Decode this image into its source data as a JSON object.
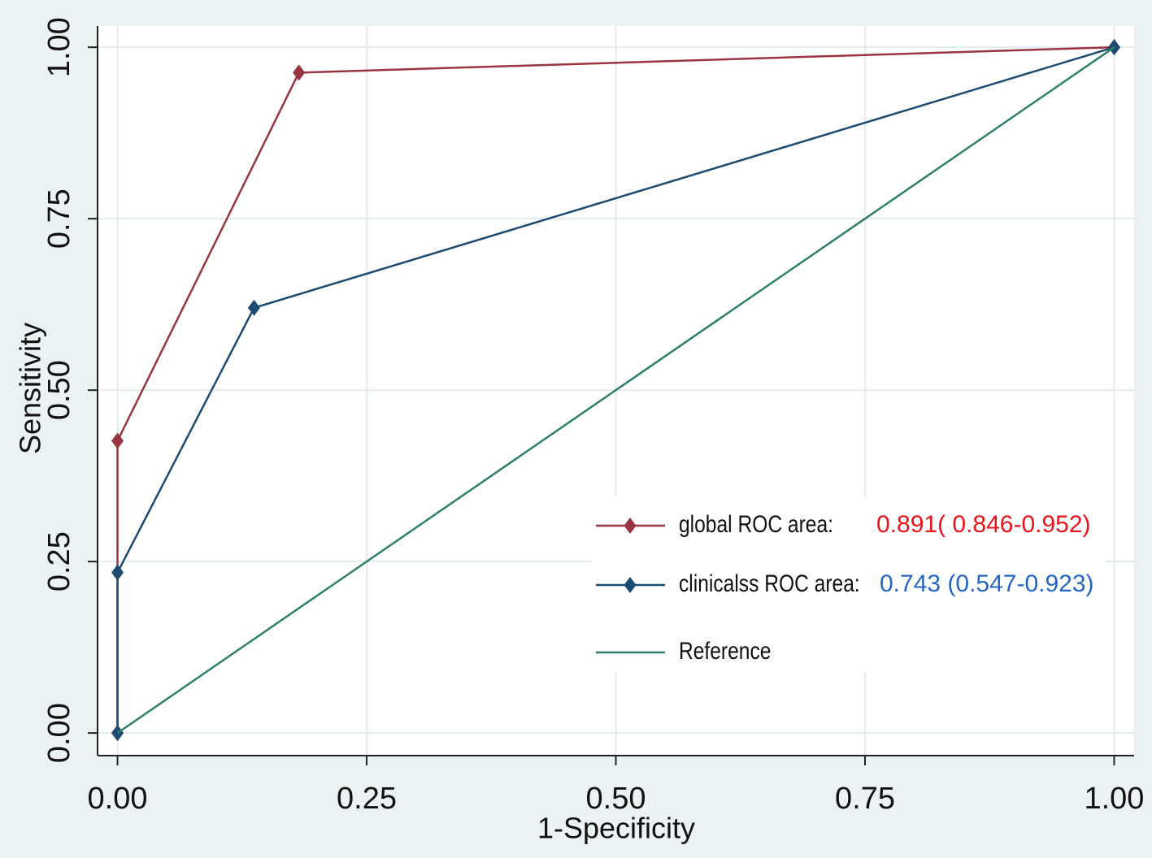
{
  "chart_data": {
    "type": "line",
    "xlabel": "1-Specificity",
    "ylabel": "Sensitivity",
    "xlim": [
      -0.02,
      1.02
    ],
    "ylim": [
      -0.033,
      1.031
    ],
    "xticks": [
      {
        "value": 0,
        "label": "0.00"
      },
      {
        "value": 0.25,
        "label": "0.25"
      },
      {
        "value": 0.5,
        "label": "0.50"
      },
      {
        "value": 0.75,
        "label": "0.75"
      },
      {
        "value": 1,
        "label": "1.00"
      }
    ],
    "yticks": [
      {
        "value": 0,
        "label": "0.00"
      },
      {
        "value": 0.25,
        "label": "0.25"
      },
      {
        "value": 0.5,
        "label": "0.50"
      },
      {
        "value": 0.75,
        "label": "0.75"
      },
      {
        "value": 1,
        "label": "1.00"
      }
    ],
    "grid": true,
    "series": [
      {
        "name": "global ROC area:",
        "color": "#9a3440",
        "markers": true,
        "x": [
          0,
          0,
          0.182,
          1
        ],
        "values": [
          0,
          0.426,
          0.963,
          1
        ],
        "annotation": "0.891( 0.846-0.952)",
        "annotation_color": "#e8141c"
      },
      {
        "name": "clinicalss ROC area:",
        "color": "#1c4a70",
        "markers": true,
        "x": [
          0,
          0,
          0.137,
          1
        ],
        "values": [
          0,
          0.234,
          0.62,
          1
        ],
        "annotation": "0.743 (0.547-0.923)",
        "annotation_color": "#2466c2"
      },
      {
        "name": "Reference",
        "color": "#2f7f6c",
        "markers": false,
        "x": [
          0,
          1
        ],
        "values": [
          0,
          1
        ]
      }
    ]
  }
}
